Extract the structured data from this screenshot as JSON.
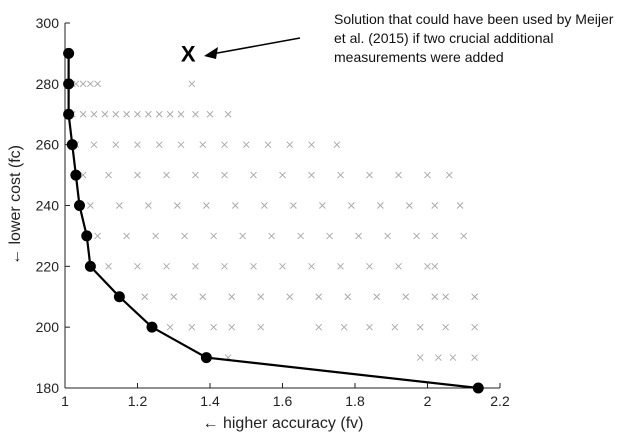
{
  "chart_data": {
    "type": "scatter",
    "xlabel": "← higher accuracy (fv)",
    "ylabel": "← lower cost (fc)",
    "xlim": [
      1,
      2.2
    ],
    "ylim": [
      180,
      300
    ],
    "xticks": [
      "1",
      "1.2",
      "1.4",
      "1.6",
      "1.8",
      "2",
      "2.2"
    ],
    "yticks": [
      "180",
      "200",
      "220",
      "240",
      "260",
      "280",
      "300"
    ],
    "grid": false,
    "colors": {
      "cloud": "#aaaaaa",
      "front": "#000000",
      "axis": "#222222"
    },
    "series": [
      {
        "name": "",
        "marker": "x",
        "rows": [
          {
            "y": 280,
            "x": [
              1.01,
              1.02,
              1.03,
              1.05,
              1.07,
              1.09,
              1.35
            ]
          },
          {
            "y": 270,
            "x": [
              1.02,
              1.05,
              1.08,
              1.11,
              1.14,
              1.17,
              1.2,
              1.23,
              1.26,
              1.29,
              1.32,
              1.36,
              1.4,
              1.45
            ]
          },
          {
            "y": 260,
            "x": [
              1.03,
              1.08,
              1.14,
              1.2,
              1.26,
              1.32,
              1.38,
              1.44,
              1.5,
              1.56,
              1.62,
              1.68,
              1.75
            ]
          },
          {
            "y": 250,
            "x": [
              1.05,
              1.12,
              1.2,
              1.28,
              1.36,
              1.44,
              1.52,
              1.6,
              1.68,
              1.76,
              1.84,
              1.92,
              2.0,
              2.06
            ]
          },
          {
            "y": 240,
            "x": [
              1.07,
              1.15,
              1.23,
              1.31,
              1.39,
              1.47,
              1.55,
              1.63,
              1.71,
              1.79,
              1.87,
              1.95,
              2.02,
              2.09
            ]
          },
          {
            "y": 230,
            "x": [
              1.09,
              1.17,
              1.25,
              1.33,
              1.41,
              1.49,
              1.57,
              1.65,
              1.73,
              1.81,
              1.89,
              1.97,
              2.02,
              2.1
            ]
          },
          {
            "y": 220,
            "x": [
              1.12,
              1.2,
              1.28,
              1.36,
              1.44,
              1.52,
              1.6,
              1.68,
              1.76,
              1.84,
              1.92,
              2.0,
              2.02
            ]
          },
          {
            "y": 210,
            "x": [
              1.15,
              1.22,
              1.3,
              1.38,
              1.46,
              1.54,
              1.62,
              1.7,
              1.78,
              1.86,
              1.94,
              2.02,
              2.05,
              2.13
            ]
          },
          {
            "y": 200,
            "x": [
              1.29,
              1.35,
              1.41,
              1.46,
              1.54,
              1.7,
              1.77,
              1.84,
              1.91,
              1.98,
              2.05,
              2.13
            ]
          },
          {
            "y": 190,
            "x": [
              1.45,
              1.98,
              2.03,
              2.07,
              2.13
            ]
          }
        ]
      },
      {
        "name": "",
        "marker": "o",
        "line": true,
        "x": [
          1.01,
          1.01,
          1.01,
          1.02,
          1.03,
          1.04,
          1.06,
          1.07,
          1.15,
          1.24,
          1.39,
          2.14
        ],
        "y": [
          290,
          280,
          270,
          260,
          250,
          240,
          230,
          220,
          210,
          200,
          190,
          180
        ]
      }
    ],
    "annotation": {
      "marker_label": "X",
      "marker_x": 1.34,
      "marker_y": 290,
      "lines": [
        "Solution that could have been used by Meijer",
        "et al. (2015) if two crucial additional",
        "measurements were added"
      ]
    }
  }
}
